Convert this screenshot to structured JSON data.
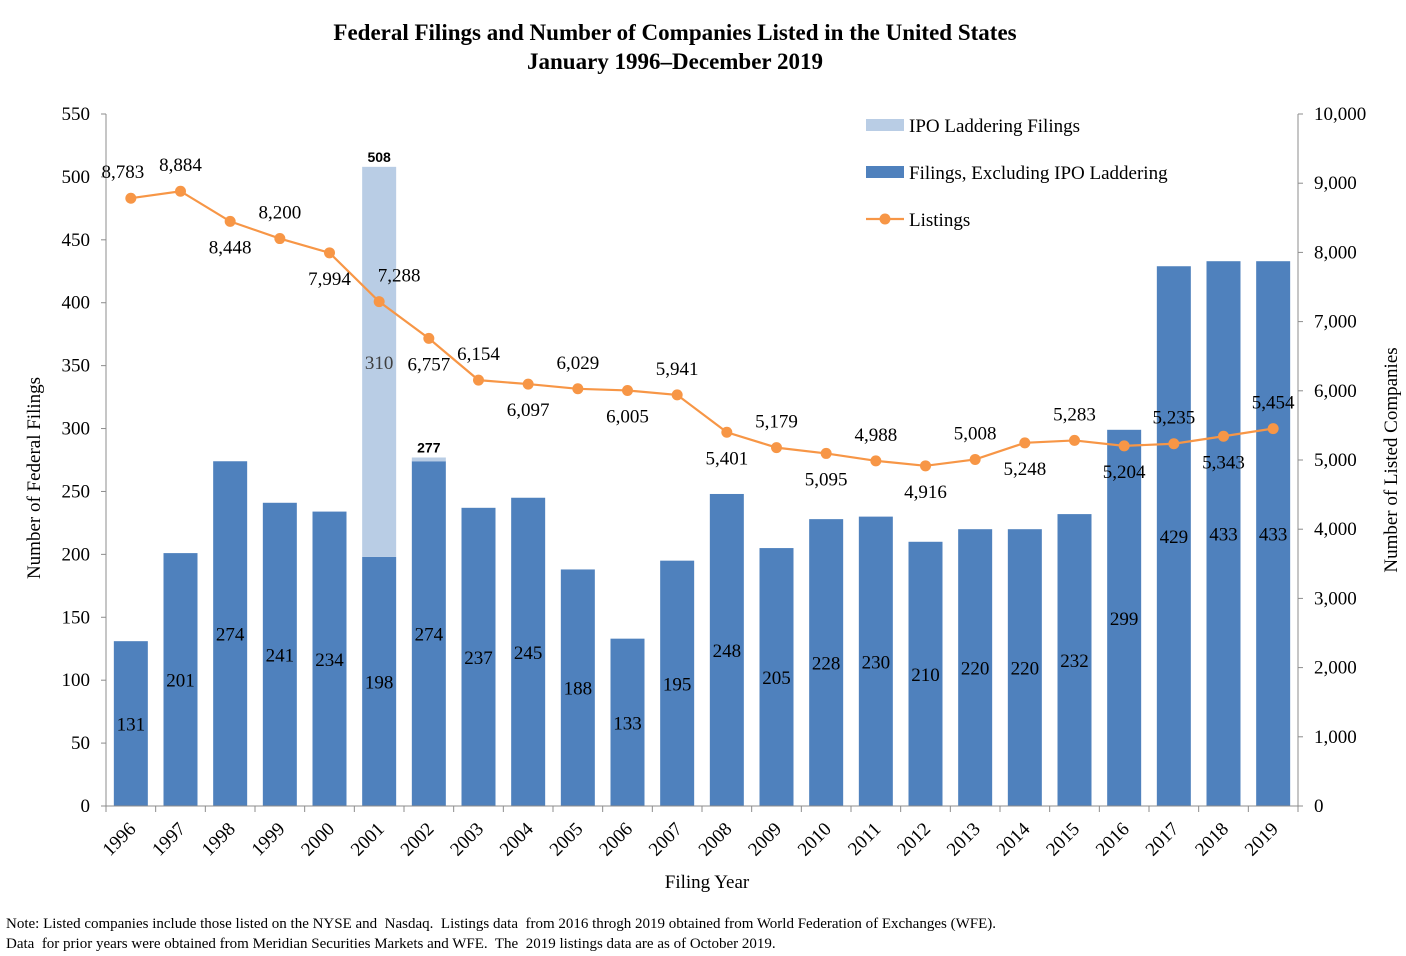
{
  "chart_data": {
    "type": "bar",
    "title": "Federal Filings and Number of Companies Listed in the United States",
    "subtitle": "January 1996–December 2019",
    "xlabel": "Filing Year",
    "ylabel": "Number of Federal Filings",
    "y2label": "Number of Listed Companies",
    "ylim": [
      0,
      550
    ],
    "y2lim": [
      0,
      10000
    ],
    "yticks": [
      "0",
      "50",
      "100",
      "150",
      "200",
      "250",
      "300",
      "350",
      "400",
      "450",
      "500",
      "550"
    ],
    "y2ticks": [
      "0",
      "1,000",
      "2,000",
      "3,000",
      "4,000",
      "5,000",
      "6,000",
      "7,000",
      "8,000",
      "9,000",
      "10,000"
    ],
    "categories": [
      "1996",
      "1997",
      "1998",
      "1999",
      "2000",
      "2001",
      "2002",
      "2003",
      "2004",
      "2005",
      "2006",
      "2007",
      "2008",
      "2009",
      "2010",
      "2011",
      "2012",
      "2013",
      "2014",
      "2015",
      "2016",
      "2017",
      "2018",
      "2019"
    ],
    "series": [
      {
        "name": "Filings, Excluding IPO Laddering",
        "kind": "bar",
        "color": "#4f81bd",
        "values": [
          131,
          201,
          274,
          241,
          234,
          198,
          274,
          237,
          245,
          188,
          133,
          195,
          248,
          205,
          228,
          230,
          210,
          220,
          220,
          232,
          299,
          429,
          433,
          433
        ],
        "labels": [
          "131",
          "201",
          "274",
          "241",
          "234",
          "198",
          "274",
          "237",
          "245",
          "188",
          "133",
          "195",
          "248",
          "205",
          "228",
          "230",
          "210",
          "220",
          "220",
          "232",
          "299",
          "429",
          "433",
          "433"
        ]
      },
      {
        "name": "IPO Laddering Filings",
        "kind": "bar-stacked",
        "color": "#b9cde5",
        "values": [
          0,
          0,
          0,
          0,
          0,
          310,
          3,
          0,
          0,
          0,
          0,
          0,
          0,
          0,
          0,
          0,
          0,
          0,
          0,
          0,
          0,
          0,
          0,
          0
        ],
        "labels": [
          "",
          "",
          "",
          "",
          "",
          "310",
          "",
          "",
          "",
          "",
          "",
          "",
          "",
          "",
          "",
          "",
          "",
          "",
          "",
          "",
          "",
          "",
          "",
          ""
        ]
      },
      {
        "name": "Listings",
        "kind": "line",
        "axis": "right",
        "color": "#f79646",
        "values": [
          8783,
          8884,
          8448,
          8200,
          7994,
          7288,
          6757,
          6154,
          6097,
          6029,
          6005,
          5941,
          5401,
          5179,
          5095,
          4988,
          4916,
          5008,
          5248,
          5283,
          5204,
          5235,
          5343,
          5454
        ],
        "labels": [
          "8,783",
          "8,884",
          "8,448",
          "8,200",
          "7,994",
          "7,288",
          "6,757",
          "6,154",
          "6,097",
          "6,029",
          "6,005",
          "5,941",
          "5,401",
          "5,179",
          "5,095",
          "4,988",
          "4,916",
          "5,008",
          "5,248",
          "5,283",
          "5,204",
          "5,235",
          "5,343",
          "5,454"
        ]
      }
    ],
    "totals": [
      {
        "index": 5,
        "label": "508"
      },
      {
        "index": 6,
        "label": "277"
      }
    ],
    "legend": {
      "placement": "top-right",
      "items": [
        {
          "label": "IPO Laddering Filings",
          "color": "#b9cde5",
          "marker": "rect"
        },
        {
          "label": "Filings, Excluding IPO Laddering",
          "color": "#4f81bd",
          "marker": "rect"
        },
        {
          "label": "Listings",
          "color": "#f79646",
          "marker": "line-dot"
        }
      ]
    },
    "grid": false
  },
  "note": {
    "line1": "Note: Listed companies include those listed on the NYSE and  Nasdaq.  Listings data  from 2016 throgh 2019 obtained from World Federation of Exchanges (WFE).",
    "line2": "Data  for prior years were obtained from Meridian Securities Markets and WFE.  The  2019 listings data are as of October 2019."
  }
}
